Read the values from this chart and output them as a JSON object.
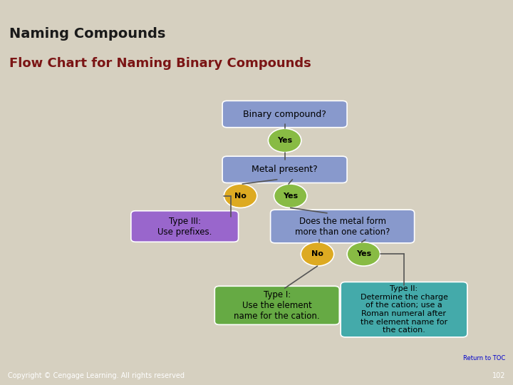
{
  "bg_color": "#d6d0c0",
  "header_color": "#8ab032",
  "header_text": "Naming Compounds",
  "header_text_color": "#1a1a1a",
  "red_accent": "#8b1a1a",
  "title_text": "Flow Chart for Naming Binary Compounds",
  "title_color": "#7b1515",
  "chart_bg": "#ffffff",
  "footer_bg": "#808080",
  "footer_text": "Copyright © Cengage Learning. All rights reserved",
  "footer_number": "102",
  "return_toc_text": "Return to TOC",
  "box_binary_label": "Binary compound?",
  "box_metal_label": "Metal present?",
  "box_does_label": "Does the metal form\nmore than one cation?",
  "box_t3_label": "Type III:\nUse prefixes.",
  "box_t1_label": "Type I:\nUse the element\nname for the cation.",
  "box_t2_label": "Type II:\nDetermine the charge\nof the cation; use a\nRoman numeral after\nthe element name for\nthe cation.",
  "color_blue": "#8899cc",
  "color_purple": "#9966cc",
  "color_green_box": "#66aa44",
  "color_teal": "#44aaaa",
  "color_yes_circle": "#88bb44",
  "color_no_circle": "#ddaa22",
  "line_color": "#555555"
}
